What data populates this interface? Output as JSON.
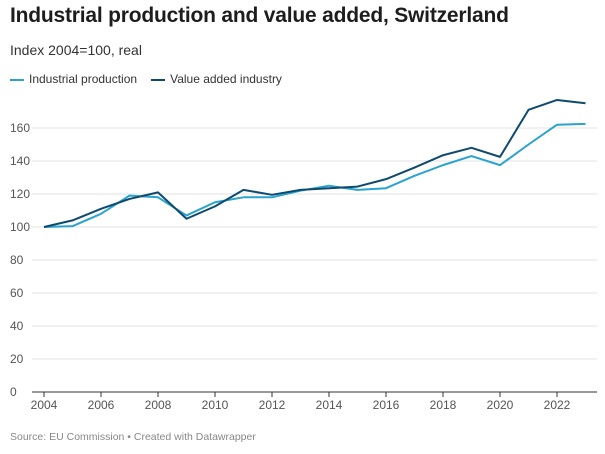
{
  "chart_data": {
    "type": "line",
    "title": "Industrial production and value added, Switzerland",
    "subtitle": "Index 2004=100, real",
    "xlabel": "",
    "ylabel": "",
    "x": [
      2004,
      2005,
      2006,
      2007,
      2008,
      2009,
      2010,
      2011,
      2012,
      2013,
      2014,
      2015,
      2016,
      2017,
      2018,
      2019,
      2020,
      2021,
      2022,
      2023
    ],
    "xticks": [
      "2004",
      "2006",
      "2008",
      "2010",
      "2012",
      "2014",
      "2016",
      "2018",
      "2020",
      "2022"
    ],
    "yticks": [
      "0",
      "20",
      "40",
      "60",
      "80",
      "100",
      "120",
      "140",
      "160"
    ],
    "ylim": [
      0,
      175
    ],
    "grid": true,
    "legend_placement": "top-left",
    "series": [
      {
        "name": "Industrial production",
        "color": "#29a3cf",
        "values": [
          100,
          100.5,
          108,
          119,
          118,
          107,
          115,
          118,
          118,
          122,
          125,
          122.5,
          123.5,
          131,
          137.5,
          143,
          137.5,
          150,
          162,
          162.5
        ]
      },
      {
        "name": "Value added industry",
        "color": "#0e4a6e",
        "values": [
          100,
          104,
          111,
          117,
          121,
          105,
          112.5,
          122.5,
          119.5,
          122.5,
          123.5,
          124.5,
          129,
          136,
          143.5,
          148,
          142.5,
          171,
          177,
          175
        ]
      }
    ],
    "source": "Source: EU Commission • Created with Datawrapper"
  }
}
